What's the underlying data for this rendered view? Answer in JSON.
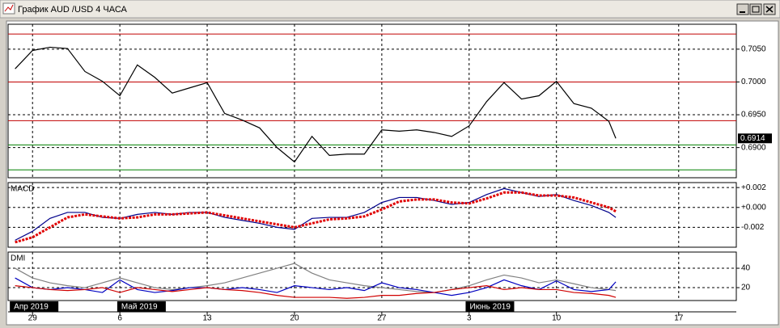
{
  "window": {
    "title": "График AUD /USD  4 ЧАСА"
  },
  "chart_data": [
    {
      "type": "line",
      "label": null,
      "x": [
        -1,
        0,
        1,
        2,
        3,
        4,
        5,
        6,
        7,
        8,
        9,
        10,
        11,
        12,
        13,
        14,
        15,
        16,
        17,
        18,
        19,
        20,
        21,
        22,
        23,
        24,
        25,
        26,
        27,
        28,
        29,
        30,
        31,
        32,
        33,
        33.4
      ],
      "series": [
        {
          "color": "#000000",
          "values": [
            0.702,
            0.7048,
            0.7053,
            0.7051,
            0.7016,
            0.7001,
            0.6979,
            0.7026,
            0.7007,
            0.6983,
            0.6991,
            0.6999,
            0.6952,
            0.6942,
            0.693,
            0.69,
            0.6878,
            0.6917,
            0.6888,
            0.689,
            0.689,
            0.6927,
            0.6925,
            0.6927,
            0.6923,
            0.6917,
            0.6933,
            0.697,
            0.6999,
            0.6974,
            0.6979,
            0.7001,
            0.6967,
            0.696,
            0.694,
            0.6914
          ]
        }
      ],
      "xlim": [
        -1.4,
        40.3
      ],
      "ylim": [
        0.6854,
        0.7088
      ],
      "yticks": [
        {
          "value": 0.705,
          "label": "0.7050"
        },
        {
          "value": 0.7,
          "label": "0.7000"
        },
        {
          "value": 0.695,
          "label": "0.6950"
        },
        {
          "value": 0.69,
          "label": "0.6900"
        }
      ],
      "levels": [
        {
          "value": 0.7073,
          "color": "#c00000"
        },
        {
          "value": 0.7,
          "color": "#c00000"
        },
        {
          "value": 0.6941,
          "color": "#c00000"
        },
        {
          "value": 0.6904,
          "color": "#008000"
        },
        {
          "value": 0.6866,
          "color": "#008000"
        }
      ],
      "current": {
        "value": 0.6914,
        "label": "0.6914"
      },
      "grid": true
    },
    {
      "type": "line",
      "label": "MACD",
      "x": [
        -1,
        0,
        1,
        2,
        3,
        4,
        5,
        6,
        7,
        8,
        9,
        10,
        11,
        12,
        13,
        14,
        15,
        16,
        17,
        18,
        19,
        20,
        21,
        22,
        23,
        24,
        25,
        26,
        27,
        28,
        29,
        30,
        31,
        32,
        33,
        33.4
      ],
      "series": [
        {
          "color": "#00008b",
          "style": "solid",
          "values": [
            -0.0033,
            -0.0024,
            -0.0011,
            -0.0005,
            -0.0005,
            -0.001,
            -0.0011,
            -0.0007,
            -0.0005,
            -0.0007,
            -0.0005,
            -0.0005,
            -0.001,
            -0.0013,
            -0.0016,
            -0.002,
            -0.0022,
            -0.0011,
            -0.001,
            -0.001,
            -0.0005,
            0.0005,
            0.001,
            0.001,
            0.0007,
            0.0003,
            0.0005,
            0.0013,
            0.0019,
            0.0015,
            0.0011,
            0.0013,
            0.0007,
            0.0002,
            -0.0005,
            -0.001
          ]
        },
        {
          "color": "#e00000",
          "style": "dotted",
          "values": [
            -0.0035,
            -0.003,
            -0.002,
            -0.001,
            -0.0007,
            -0.0009,
            -0.0011,
            -0.001,
            -0.0007,
            -0.0007,
            -0.0006,
            -0.0005,
            -0.0008,
            -0.0011,
            -0.0014,
            -0.0017,
            -0.002,
            -0.0016,
            -0.0012,
            -0.0011,
            -0.0009,
            -0.0002,
            0.0006,
            0.0008,
            0.0008,
            0.0005,
            0.0004,
            0.0009,
            0.0015,
            0.0015,
            0.0012,
            0.0012,
            0.001,
            0.0005,
            0.0,
            -0.0004
          ]
        }
      ],
      "xlim": [
        -1.4,
        40.3
      ],
      "ylim": [
        -0.004,
        0.0025
      ],
      "yticks": [
        {
          "value": 0.002,
          "label": "+0.002"
        },
        {
          "value": 0,
          "label": "+0.000"
        },
        {
          "value": -0.002,
          "label": "-0.002"
        }
      ],
      "grid": true
    },
    {
      "type": "line",
      "label": "DMI",
      "x": [
        -1,
        0,
        1,
        2,
        3,
        4,
        5,
        6,
        7,
        8,
        9,
        10,
        11,
        12,
        13,
        14,
        15,
        16,
        17,
        18,
        19,
        20,
        21,
        22,
        23,
        24,
        25,
        26,
        27,
        28,
        29,
        30,
        31,
        32,
        33,
        33.4
      ],
      "series": [
        {
          "color": "#808080",
          "style": "solid",
          "values": [
            40,
            30,
            25,
            22,
            20,
            25,
            30,
            25,
            20,
            18,
            20,
            22,
            25,
            30,
            35,
            40,
            45,
            35,
            28,
            25,
            22,
            20,
            18,
            16,
            15,
            18,
            22,
            28,
            33,
            30,
            25,
            28,
            24,
            20,
            18,
            17
          ]
        },
        {
          "color": "#0000c0",
          "style": "solid",
          "values": [
            30,
            20,
            18,
            20,
            18,
            15,
            28,
            18,
            15,
            17,
            20,
            20,
            18,
            20,
            18,
            15,
            22,
            20,
            18,
            20,
            17,
            25,
            20,
            18,
            15,
            12,
            15,
            20,
            28,
            22,
            18,
            27,
            18,
            16,
            18,
            26
          ]
        },
        {
          "color": "#d00000",
          "style": "solid",
          "values": [
            22,
            20,
            18,
            17,
            18,
            20,
            15,
            20,
            18,
            16,
            18,
            20,
            18,
            17,
            15,
            12,
            10,
            10,
            10,
            9,
            10,
            12,
            12,
            14,
            15,
            18,
            20,
            22,
            18,
            20,
            18,
            18,
            15,
            14,
            12,
            10
          ]
        }
      ],
      "xlim": [
        -1.4,
        40.3
      ],
      "ylim": [
        6.7,
        56.7
      ],
      "yticks": [
        40,
        20
      ],
      "grid": true,
      "xticks": [
        {
          "value": 0,
          "label": "29"
        },
        {
          "value": 5,
          "label": "6"
        },
        {
          "value": 10,
          "label": "13"
        },
        {
          "value": 15,
          "label": "20"
        },
        {
          "value": 20,
          "label": "27"
        },
        {
          "value": 25,
          "label": "3"
        },
        {
          "value": 30,
          "label": "10"
        },
        {
          "value": 37,
          "label": "17"
        }
      ],
      "months": [
        {
          "value": -1.3,
          "label": "Апр 2019"
        },
        {
          "value": 4.85,
          "label": "Май 2019"
        },
        {
          "value": 24.8,
          "label": "Июнь 2019"
        }
      ]
    }
  ]
}
